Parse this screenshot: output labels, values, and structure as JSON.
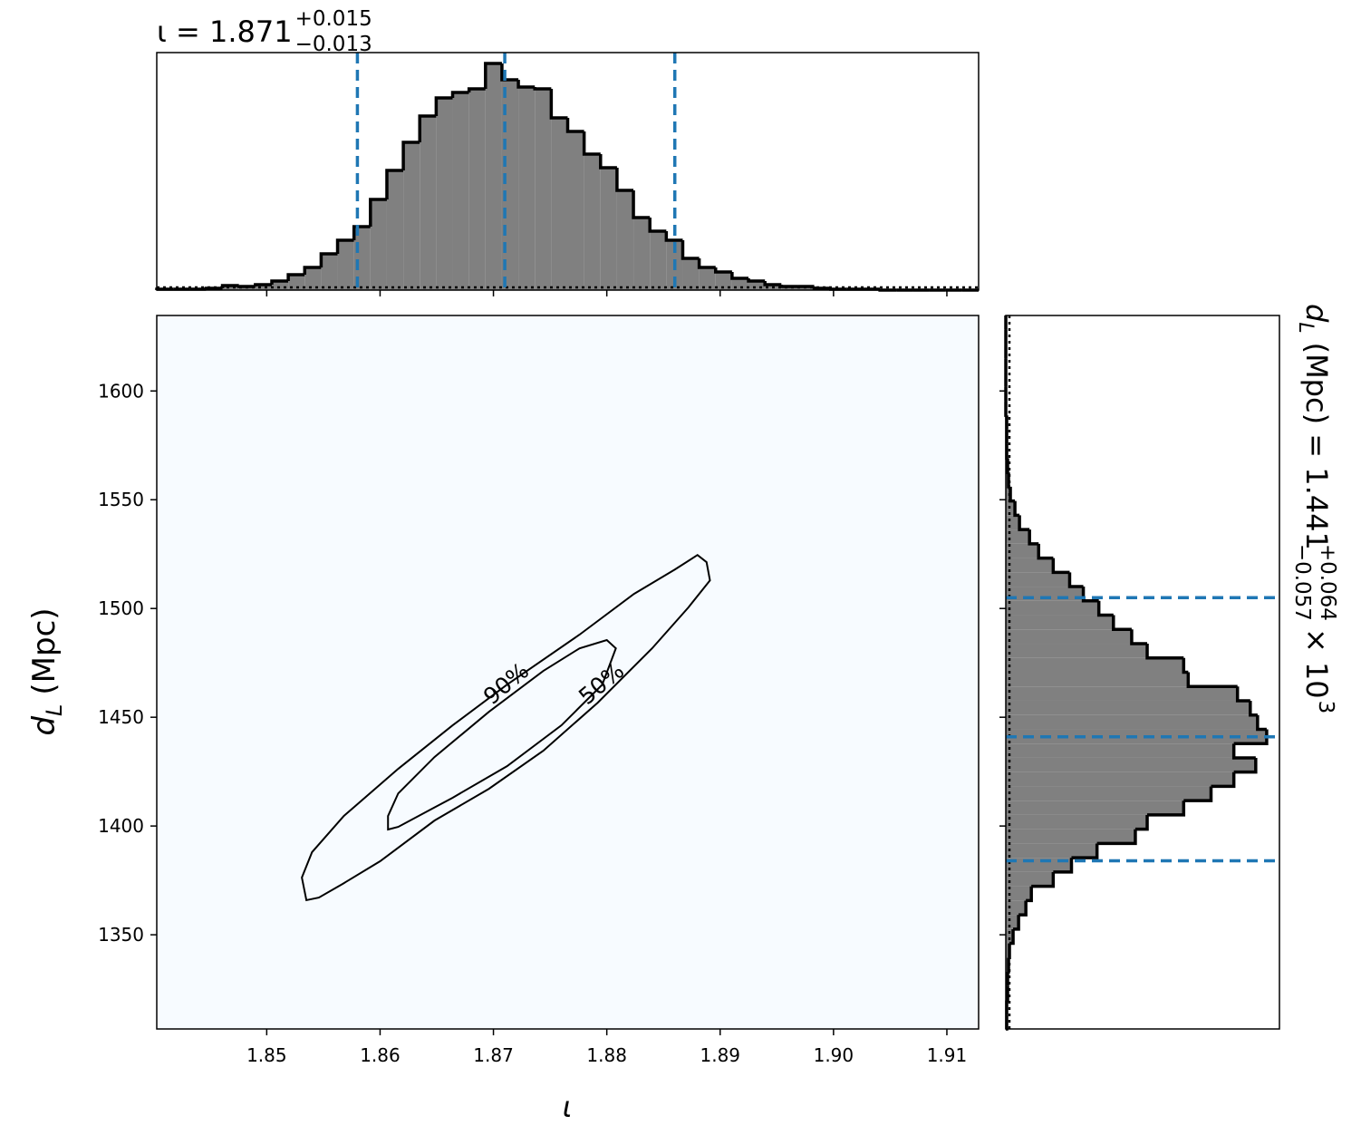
{
  "chart_data": [
    {
      "type": "histogram",
      "orientation": "vertical",
      "title": {
        "text": "ι = 1.871",
        "sup": "+0.015",
        "sub": "−0.013"
      },
      "color": "#808080",
      "line_color": "#000000",
      "quantile_color": "#1f77b4",
      "bins": [
        1.8403,
        1.84175,
        1.8432,
        1.84465,
        1.8461,
        1.84755,
        1.849,
        1.85045,
        1.8519,
        1.85335,
        1.8548,
        1.85625,
        1.8577,
        1.85915,
        1.8606,
        1.86205,
        1.8635,
        1.86495,
        1.8664,
        1.86785,
        1.8693,
        1.87075,
        1.8722,
        1.87365,
        1.8751,
        1.87655,
        1.878,
        1.87945,
        1.8809,
        1.88235,
        1.8838,
        1.88525,
        1.8867,
        1.88815,
        1.8896,
        1.89105,
        1.8925,
        1.89395,
        1.8954,
        1.89685,
        1.8983,
        1.89975,
        1.9012,
        1.90265,
        1.9041,
        1.90555,
        1.907,
        1.90845,
        1.9099,
        1.91135,
        1.9128
      ],
      "values": [
        1,
        1,
        1,
        2,
        5,
        4,
        6,
        10,
        17,
        25,
        40,
        55,
        70,
        100,
        132,
        163,
        192,
        212,
        218,
        222,
        250,
        232,
        224,
        222,
        190,
        175,
        150,
        135,
        110,
        80,
        65,
        55,
        35,
        25,
        20,
        13,
        10,
        6,
        4,
        4,
        2,
        1,
        1,
        1,
        0,
        0,
        0,
        0,
        0,
        0
      ],
      "quantiles": [
        1.858,
        1.871,
        1.886
      ],
      "xlim": [
        1.8403,
        1.9128
      ],
      "xticks": [
        1.85,
        1.86,
        1.87,
        1.88,
        1.89,
        1.9,
        1.91
      ],
      "ylim": [
        0,
        262
      ]
    },
    {
      "type": "density2d",
      "xlabel": "ι",
      "ylabel": {
        "symbol": "d",
        "subscript": "L",
        "unit": "(Mpc)"
      },
      "xlim": [
        1.8403,
        1.9128
      ],
      "xticks": [
        1.85,
        1.86,
        1.87,
        1.88,
        1.89,
        {
          "value": 1.9,
          "label": "1.90"
        },
        1.91
      ],
      "ylim": [
        1306.7,
        1634.7
      ],
      "yticks": [
        1350,
        1400,
        1450,
        1500,
        1550,
        1600
      ],
      "contours": [
        {
          "label": "90%",
          "x": [
            1.8535,
            1.8546,
            1.8567,
            1.86,
            1.8648,
            1.8696,
            1.8744,
            1.8792,
            1.884,
            1.8872,
            1.8891,
            1.8888,
            1.888,
            1.886,
            1.8824,
            1.8776,
            1.8712,
            1.8664,
            1.8616,
            1.8568,
            1.854,
            1.8531
          ],
          "y": [
            1365.9,
            1367.1,
            1373.4,
            1383.8,
            1402.5,
            1417.1,
            1434.6,
            1456.7,
            1481.7,
            1500.5,
            1512.9,
            1521.3,
            1524.6,
            1517.9,
            1506.7,
            1488.0,
            1465.0,
            1446.3,
            1426.3,
            1404.6,
            1388.0,
            1376.3
          ]
        },
        {
          "label": "50%",
          "x": [
            1.8607,
            1.8616,
            1.8664,
            1.8712,
            1.876,
            1.8796,
            1.8808,
            1.88,
            1.8776,
            1.8744,
            1.8696,
            1.8648,
            1.8616,
            1.8607
          ],
          "y": [
            1398.4,
            1399.6,
            1413.0,
            1427.5,
            1446.3,
            1465.0,
            1481.7,
            1485.5,
            1481.7,
            1471.3,
            1452.5,
            1431.7,
            1415.0,
            1404.6
          ]
        }
      ]
    },
    {
      "type": "histogram",
      "orientation": "horizontal",
      "label": {
        "symbol": "d",
        "subscript": "L",
        "text": "(Mpc) = 1.441",
        "sup": "+0.064",
        "sub": "−0.057",
        "factor": "× 10",
        "exponent": "3"
      },
      "color": "#808080",
      "line_color": "#000000",
      "quantile_color": "#1f77b4",
      "bins": [
        1306.7,
        1313.26,
        1319.82,
        1326.38,
        1332.94,
        1339.5,
        1346.06,
        1352.62,
        1359.18,
        1365.74,
        1372.3,
        1378.86,
        1385.42,
        1391.98,
        1398.54,
        1405.1,
        1411.66,
        1418.22,
        1424.78,
        1431.34,
        1437.9,
        1444.46,
        1451.02,
        1457.58,
        1464.14,
        1470.7,
        1477.26,
        1483.82,
        1490.38,
        1496.94,
        1503.5,
        1510.06,
        1516.62,
        1523.18,
        1529.74,
        1536.3,
        1542.86,
        1549.42,
        1555.98,
        1562.54,
        1569.1,
        1575.66,
        1582.22,
        1588.78,
        1595.34,
        1601.9,
        1608.46,
        1615.02,
        1621.58,
        1628.14,
        1634.7
      ],
      "values": [
        1,
        1,
        2,
        2,
        3,
        4,
        8,
        14,
        22,
        28,
        52,
        72,
        100,
        142,
        155,
        195,
        225,
        250,
        274,
        250,
        286,
        276,
        268,
        254,
        200,
        195,
        155,
        138,
        118,
        102,
        85,
        70,
        52,
        36,
        26,
        15,
        10,
        5,
        3,
        2,
        1,
        1,
        1,
        0,
        0,
        0,
        0,
        0,
        0,
        0
      ],
      "quantiles": [
        1384,
        1441,
        1505
      ],
      "xlim": [
        0,
        300
      ],
      "ylim": [
        1306.7,
        1634.7
      ],
      "yticks": [
        1350,
        1400,
        1450,
        1500,
        1550,
        1600
      ]
    }
  ]
}
